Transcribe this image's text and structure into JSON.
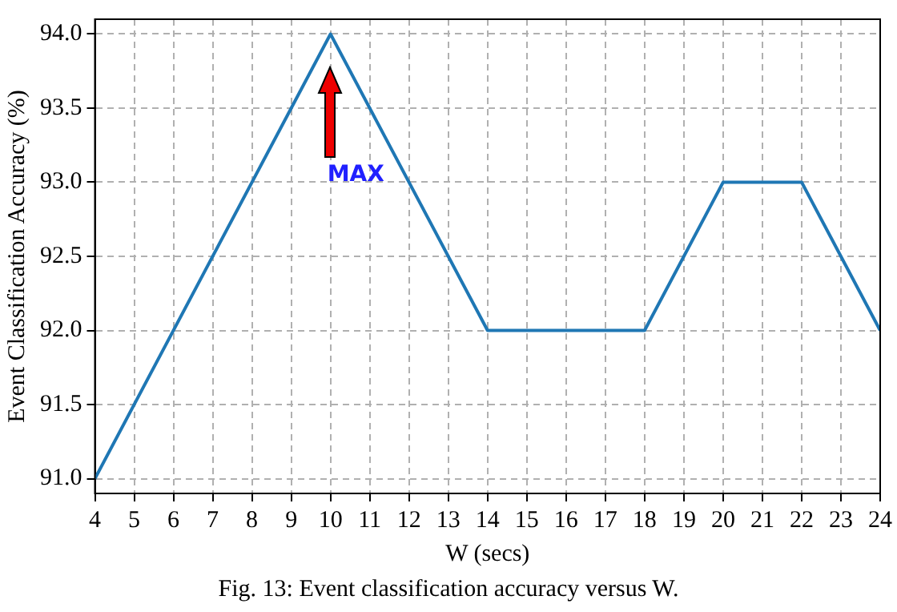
{
  "chart_data": {
    "type": "line",
    "xlabel": "W (secs)",
    "ylabel": "Event Classification Accuracy (%)",
    "x": [
      4,
      10,
      14,
      18,
      20,
      22,
      24
    ],
    "series": [
      {
        "color": "#1f77b4",
        "values": [
          91,
          94,
          92,
          92,
          93,
          93,
          92
        ]
      }
    ],
    "xlim": [
      4,
      24
    ],
    "xticks": [
      4,
      5,
      6,
      7,
      8,
      9,
      10,
      11,
      12,
      13,
      14,
      15,
      16,
      17,
      18,
      19,
      20,
      21,
      22,
      23,
      24
    ],
    "ylim": [
      90.9,
      94.1
    ],
    "yticks": [
      {
        "value": 91,
        "label": "91.0"
      },
      {
        "value": 91.5,
        "label": "91.5"
      },
      {
        "value": 92,
        "label": "92.0"
      },
      {
        "value": 92.5,
        "label": "92.5"
      },
      {
        "value": 93,
        "label": "93.0"
      },
      {
        "value": 93.5,
        "label": "93.5"
      },
      {
        "value": 94,
        "label": "94.0"
      }
    ],
    "grid": true,
    "legend": false,
    "marker": "none",
    "line_style": "solid",
    "annotations": [
      "MAX",
      "Fig. 13: Event classification accuracy versus W."
    ]
  }
}
